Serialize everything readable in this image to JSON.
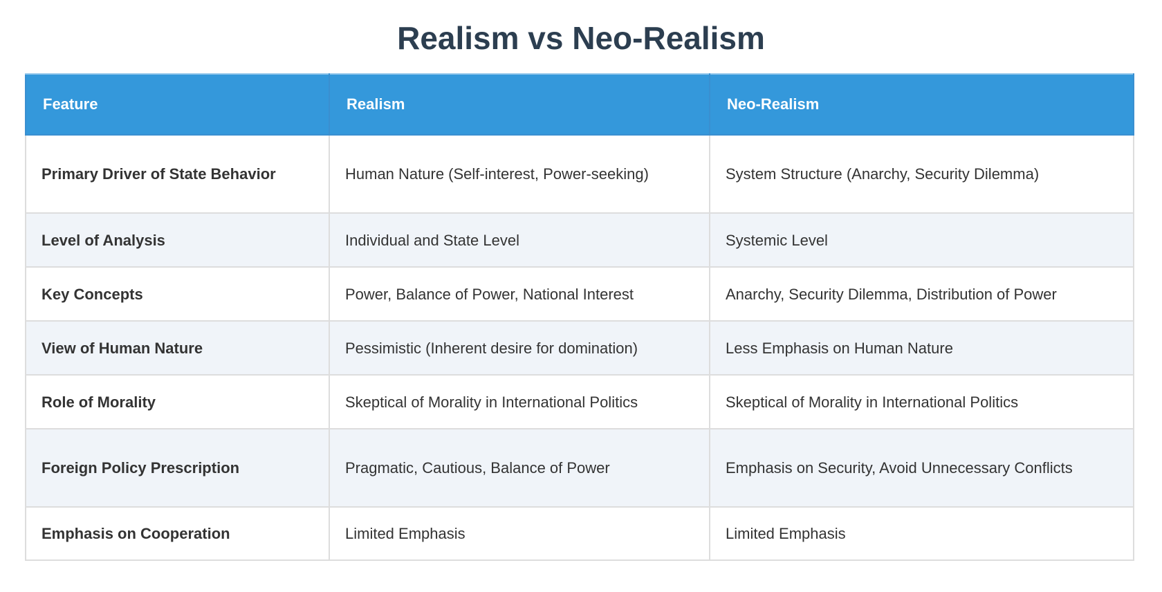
{
  "title": "Realism vs Neo-Realism",
  "columns": [
    "Feature",
    "Realism",
    "Neo-Realism"
  ],
  "rows": [
    [
      "Primary Driver of State Behavior",
      "Human Nature (Self-interest, Power-seeking)",
      "System Structure (Anarchy, Security Dilemma)"
    ],
    [
      "Level of Analysis",
      "Individual and State Level",
      "Systemic Level"
    ],
    [
      "Key Concepts",
      "Power, Balance of Power, National Interest",
      "Anarchy, Security Dilemma, Distribution of Power"
    ],
    [
      "View of Human Nature",
      "Pessimistic (Inherent desire for domination)",
      "Less Emphasis on Human Nature"
    ],
    [
      "Role of Morality",
      "Skeptical of Morality in International Politics",
      "Skeptical of Morality in International Politics"
    ],
    [
      "Foreign Policy Prescription",
      "Pragmatic, Cautious, Balance of Power",
      "Emphasis on Security, Avoid Unnecessary Conflicts"
    ],
    [
      "Emphasis on Cooperation",
      "Limited Emphasis",
      "Limited Emphasis"
    ]
  ],
  "colors": {
    "title": "#2c3e50",
    "header_bg": "#3498db",
    "alt_row_bg": "#f0f4f9",
    "border": "#dddddd"
  }
}
